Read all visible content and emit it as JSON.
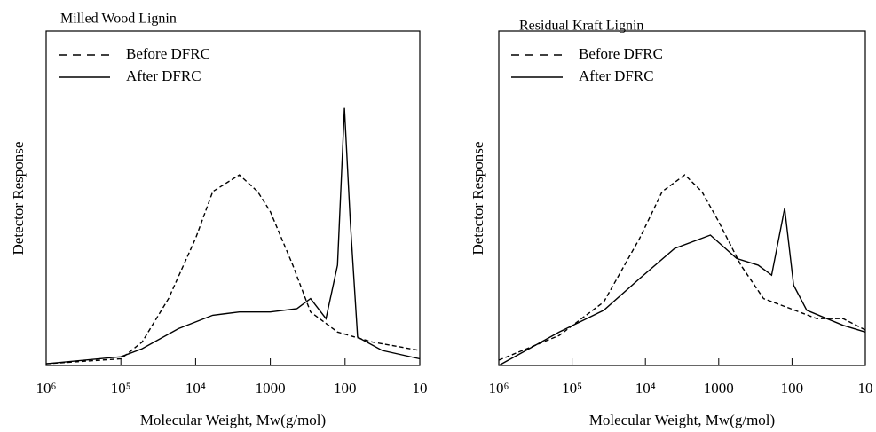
{
  "chart_data": [
    {
      "type": "line",
      "title": "Milled Wood Lignin",
      "x_label": "Molecular Weight,  Mw(g/mol)",
      "y_label": "Detector Response",
      "xscale": "log",
      "xlim": [
        1000000,
        10
      ],
      "ylim": [
        0,
        100
      ],
      "xticks": [
        {
          "value": 1000000,
          "label": "10⁶"
        },
        {
          "value": 100000,
          "label": "10⁵"
        },
        {
          "value": 10000,
          "label": "10⁴"
        },
        1000,
        100,
        10
      ],
      "legend": "upper-left",
      "series": [
        {
          "name": "Before DFRC",
          "color": "#000000",
          "linestyle": "dashed",
          "x": [
            1000000,
            100000,
            52000,
            23000,
            10000,
            5900,
            2600,
            1480,
            1000,
            500,
            290,
            126,
            43,
            10
          ],
          "values": [
            0.5,
            2,
            7,
            20,
            38,
            52,
            57,
            52,
            46,
            30,
            16,
            10,
            7,
            4.5
          ]
        },
        {
          "name": "After DFRC",
          "color": "#000000",
          "linestyle": "solid",
          "x": [
            1000000,
            100000,
            52000,
            17000,
            5900,
            2600,
            1000,
            440,
            290,
            180,
            126,
            102,
            85,
            68,
            32,
            10
          ],
          "values": [
            0.5,
            2.6,
            5,
            11,
            15,
            16,
            16,
            17,
            20,
            14,
            30,
            77,
            43,
            8.5,
            4.5,
            2
          ]
        }
      ]
    },
    {
      "type": "line",
      "title": "Residual Kraft Lignin",
      "x_label": "Molecular Weight,  Mw(g/mol)",
      "y_label": "Detector Response",
      "xscale": "log",
      "xlim": [
        1000000,
        10
      ],
      "ylim": [
        0,
        100
      ],
      "xticks": [
        {
          "value": 1000000,
          "label": "10⁶"
        },
        {
          "value": 100000,
          "label": "10⁵"
        },
        {
          "value": 10000,
          "label": "10⁴"
        },
        1000,
        100,
        10
      ],
      "legend": "upper-left",
      "series": [
        {
          "name": "Before DFRC",
          "color": "#000000",
          "linestyle": "dashed",
          "x": [
            1000000,
            150000,
            37000,
            12000,
            5900,
            2900,
            1700,
            1000,
            500,
            245,
            105,
            46,
            20,
            10
          ],
          "values": [
            1.6,
            9,
            19,
            38,
            52,
            57,
            52,
            43,
            30,
            20,
            17,
            14,
            14,
            10.6
          ]
        },
        {
          "name": "After DFRC",
          "color": "#000000",
          "linestyle": "solid",
          "x": [
            1000000,
            150000,
            37000,
            12000,
            4000,
            1300,
            570,
            290,
            190,
            126,
            95,
            63,
            20,
            10
          ],
          "values": [
            0,
            10,
            16.5,
            26,
            35,
            39,
            32,
            30,
            27,
            47,
            24,
            16.5,
            12,
            10
          ]
        }
      ]
    }
  ]
}
